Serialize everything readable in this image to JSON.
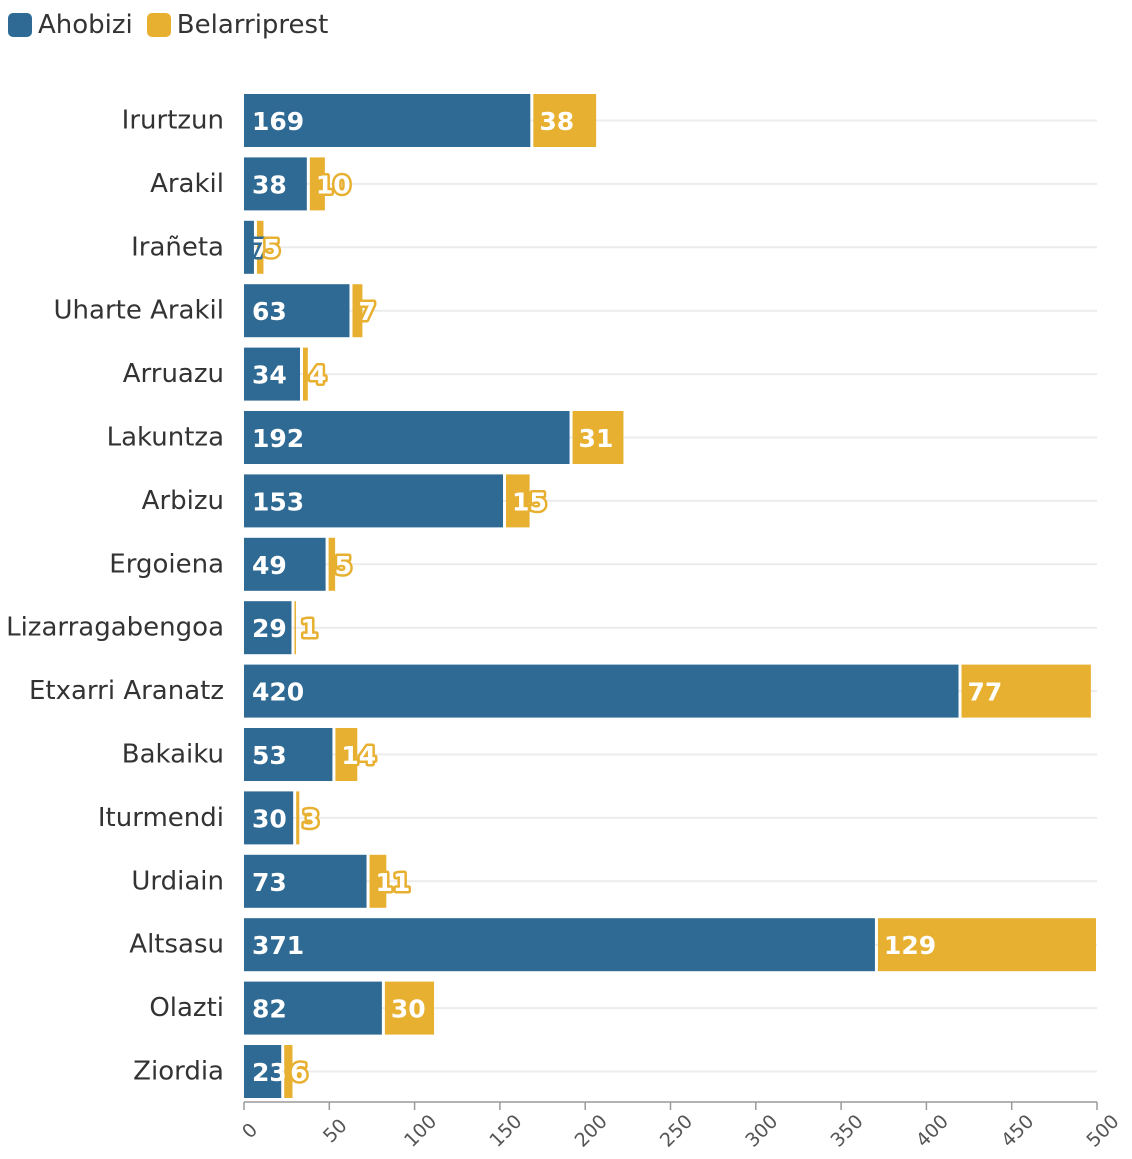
{
  "chart_data": {
    "type": "bar",
    "orientation": "horizontal",
    "stacked": true,
    "categories": [
      "Irurtzun",
      "Arakil",
      "Irañeta",
      "Uharte Arakil",
      "Arruazu",
      "Lakuntza",
      "Arbizu",
      "Ergoiena",
      "Lizarragabengoa",
      "Etxarri Aranatz",
      "Bakaiku",
      "Iturmendi",
      "Urdiain",
      "Altsasu",
      "Olazti",
      "Ziordia"
    ],
    "series": [
      {
        "name": "Ahobizi",
        "color": "#2e6a93",
        "values": [
          169,
          38,
          7,
          63,
          34,
          192,
          153,
          49,
          29,
          420,
          53,
          30,
          73,
          371,
          82,
          23
        ]
      },
      {
        "name": "Belarriprest",
        "color": "#e8b031",
        "values": [
          38,
          10,
          5,
          7,
          4,
          31,
          15,
          5,
          1,
          77,
          14,
          3,
          11,
          129,
          30,
          6
        ]
      }
    ],
    "xlim": [
      0,
      500
    ],
    "xticks": [
      "0",
      "50",
      "100",
      "150",
      "200",
      "250",
      "300",
      "350",
      "400",
      "450",
      "500"
    ],
    "grid": true,
    "legend_position": "top-left"
  }
}
